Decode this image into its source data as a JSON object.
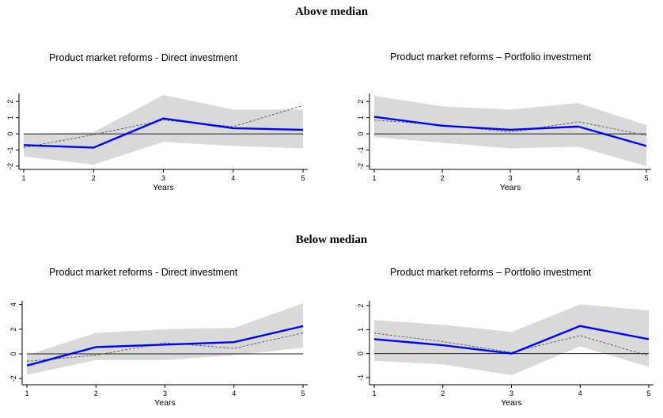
{
  "headings": {
    "above": "Above median",
    "below": "Below median"
  },
  "chart_data": [
    {
      "type": "area",
      "title": "Product market reforms - Direct investment",
      "xlabel": "Years",
      "ylabel": "",
      "x": [
        1,
        2,
        3,
        4,
        5
      ],
      "yticks": [
        -2,
        -1,
        0,
        1,
        2
      ],
      "ylim": [
        -2.2,
        2.5
      ],
      "series": [
        {
          "role": "band",
          "lower": [
            -1.4,
            -1.9,
            -0.5,
            -0.75,
            -0.9
          ],
          "upper": [
            0.0,
            0.1,
            2.4,
            1.5,
            1.5
          ],
          "color": "#d9d9d9"
        },
        {
          "role": "line",
          "values": [
            -0.7,
            -0.85,
            0.95,
            0.35,
            0.25
          ],
          "color": "#0000ff"
        },
        {
          "role": "dashed",
          "values": [
            -0.85,
            -0.05,
            0.85,
            0.45,
            1.75
          ],
          "color": "#555555"
        }
      ]
    },
    {
      "type": "area",
      "title": "Product market reforms – Portfolio investment",
      "xlabel": "Years",
      "ylabel": "",
      "x": [
        1,
        2,
        3,
        4,
        5
      ],
      "yticks": [
        -2,
        -1,
        0,
        1,
        2
      ],
      "ylim": [
        -2.2,
        2.5
      ],
      "series": [
        {
          "role": "band",
          "lower": [
            -0.2,
            -0.55,
            -0.9,
            -0.8,
            -2.0
          ],
          "upper": [
            2.35,
            1.7,
            1.5,
            1.9,
            0.55
          ],
          "color": "#d9d9d9"
        },
        {
          "role": "line",
          "values": [
            1.05,
            0.5,
            0.25,
            0.45,
            -0.75
          ],
          "color": "#0000ff"
        },
        {
          "role": "dashed",
          "values": [
            0.85,
            0.55,
            0.1,
            0.75,
            -0.1
          ],
          "color": "#555555"
        }
      ]
    },
    {
      "type": "area",
      "title": "Product market reforms - Direct investment",
      "xlabel": "Years",
      "ylabel": "",
      "x": [
        1,
        2,
        3,
        4,
        5
      ],
      "yticks": [
        -2,
        0,
        2,
        4
      ],
      "ylim": [
        -2.5,
        4.3
      ],
      "series": [
        {
          "role": "band",
          "lower": [
            -1.7,
            -0.5,
            -0.5,
            -0.1,
            0.5
          ],
          "upper": [
            -0.1,
            1.7,
            2.0,
            2.1,
            4.1
          ],
          "color": "#d9d9d9"
        },
        {
          "role": "line",
          "values": [
            -0.95,
            0.55,
            0.75,
            0.95,
            2.25
          ],
          "color": "#0000ff"
        },
        {
          "role": "dashed",
          "values": [
            -0.6,
            -0.1,
            0.9,
            0.45,
            1.7
          ],
          "color": "#555555"
        }
      ]
    },
    {
      "type": "area",
      "title": "Product market reforms – Portfolio investment",
      "xlabel": "Years",
      "ylabel": "",
      "x": [
        1,
        2,
        3,
        4,
        5
      ],
      "yticks": [
        -1,
        0,
        1,
        2
      ],
      "ylim": [
        -1.3,
        2.2
      ],
      "series": [
        {
          "role": "band",
          "lower": [
            -0.3,
            -0.45,
            -0.9,
            0.3,
            -0.55
          ],
          "upper": [
            1.4,
            1.2,
            0.9,
            2.05,
            1.8
          ],
          "color": "#d9d9d9"
        },
        {
          "role": "line",
          "values": [
            0.6,
            0.35,
            0.0,
            1.15,
            0.6
          ],
          "color": "#0000ff"
        },
        {
          "role": "dashed",
          "values": [
            0.85,
            0.5,
            0.05,
            0.75,
            -0.1
          ],
          "color": "#555555"
        }
      ]
    }
  ]
}
